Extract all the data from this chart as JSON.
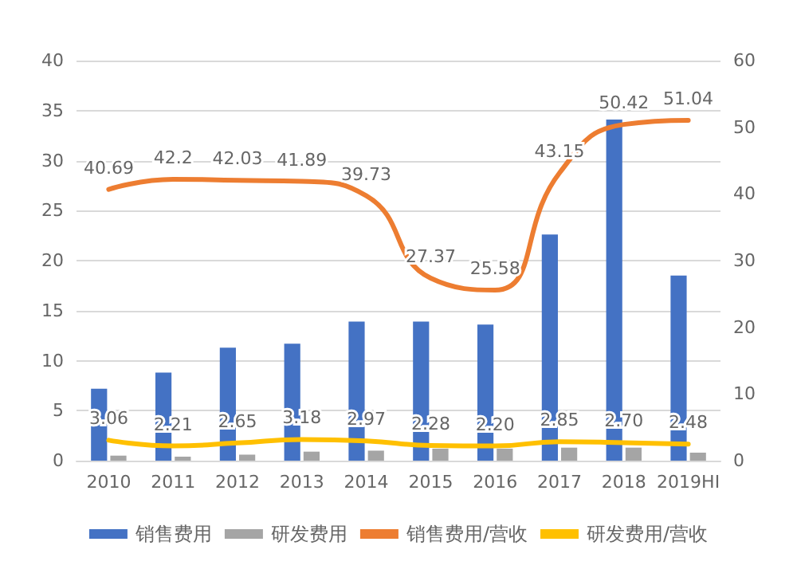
{
  "chart_data": {
    "type": "bar",
    "categories": [
      "2010",
      "2011",
      "2012",
      "2013",
      "2014",
      "2015",
      "2016",
      "2017",
      "2018",
      "2019HI"
    ],
    "series": [
      {
        "name": "销售费用",
        "color": "#4472c4",
        "values": [
          7.2,
          8.8,
          11.3,
          11.7,
          13.9,
          13.9,
          13.6,
          22.6,
          34.1,
          18.5
        ]
      },
      {
        "name": "研发费用",
        "color": "#a5a5a5",
        "values": [
          0.5,
          0.4,
          0.6,
          0.9,
          1.0,
          1.2,
          1.2,
          1.3,
          1.3,
          0.8
        ]
      },
      {
        "name": "销售费用/营收",
        "type": "line",
        "axis": "y2",
        "color": "#ed7d31",
        "values": [
          40.69,
          42.2,
          42.03,
          41.89,
          39.73,
          27.37,
          25.58,
          43.15,
          50.42,
          51.04
        ],
        "value_labels": [
          "40.69",
          "42.2",
          "42.03",
          "41.89",
          "39.73",
          "27.37",
          "25.58",
          "43.15",
          "50.42",
          "51.04"
        ]
      },
      {
        "name": "研发费用/营收",
        "type": "line",
        "axis": "y2",
        "color": "#ffc000",
        "values": [
          3.06,
          2.21,
          2.65,
          3.18,
          2.97,
          2.28,
          2.2,
          2.85,
          2.7,
          2.48
        ],
        "value_labels": [
          "3.06",
          "2.21",
          "2.65",
          "3.18",
          "2.97",
          "2.28",
          "2.20",
          "2.85",
          "2.70",
          "2.48"
        ]
      }
    ],
    "ylim": [
      0,
      40
    ],
    "yticks": [
      0,
      5,
      10,
      15,
      20,
      25,
      30,
      35,
      40
    ],
    "y2lim": [
      0,
      60
    ],
    "y2ticks": [
      0,
      10,
      20,
      30,
      40,
      50,
      60
    ],
    "grid": "y",
    "legend": "bottom",
    "marker": "none",
    "line_style": "solid"
  }
}
